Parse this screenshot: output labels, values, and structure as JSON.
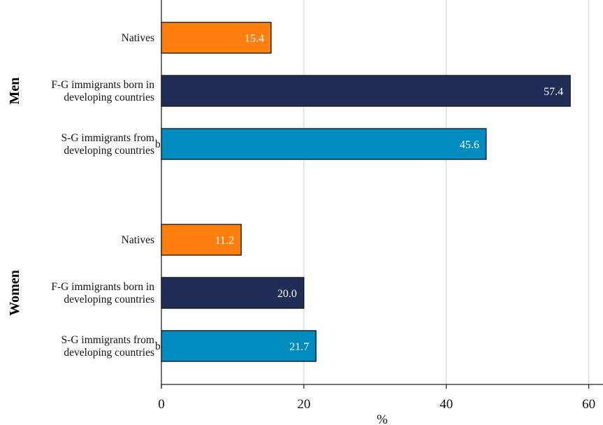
{
  "chart_data": {
    "type": "bar",
    "orientation": "horizontal",
    "xlabel": "%",
    "xlim": [
      0,
      62
    ],
    "xticks": [
      0,
      20,
      40,
      60
    ],
    "grid": true,
    "colors": {
      "natives": "#ff7f0e",
      "fg": "#1f2d57",
      "sg": "#008cbf",
      "grid": "#d9d9d9",
      "axis": "#222222"
    },
    "groups": [
      {
        "name": "Men",
        "bars": [
          {
            "label_lines": [
              "Natives"
            ],
            "value": 15.4,
            "value_label": "15.4",
            "color_key": "natives",
            "superscript": ""
          },
          {
            "label_lines": [
              "F-G immigrants born in",
              "developing countries"
            ],
            "value": 57.4,
            "value_label": "57.4",
            "color_key": "fg",
            "superscript": ""
          },
          {
            "label_lines": [
              "S-G immigrants from",
              "developing countries"
            ],
            "value": 45.6,
            "value_label": "45.6",
            "color_key": "sg",
            "superscript": "b"
          }
        ]
      },
      {
        "name": "Women",
        "bars": [
          {
            "label_lines": [
              "Natives"
            ],
            "value": 11.2,
            "value_label": "11.2",
            "color_key": "natives",
            "superscript": ""
          },
          {
            "label_lines": [
              "F-G immigrants born in",
              "developing countries"
            ],
            "value": 20.0,
            "value_label": "20.0",
            "color_key": "fg",
            "superscript": ""
          },
          {
            "label_lines": [
              "S-G immigrants from",
              "developing countries"
            ],
            "value": 21.7,
            "value_label": "21.7",
            "color_key": "sg",
            "superscript": "b"
          }
        ]
      }
    ]
  }
}
